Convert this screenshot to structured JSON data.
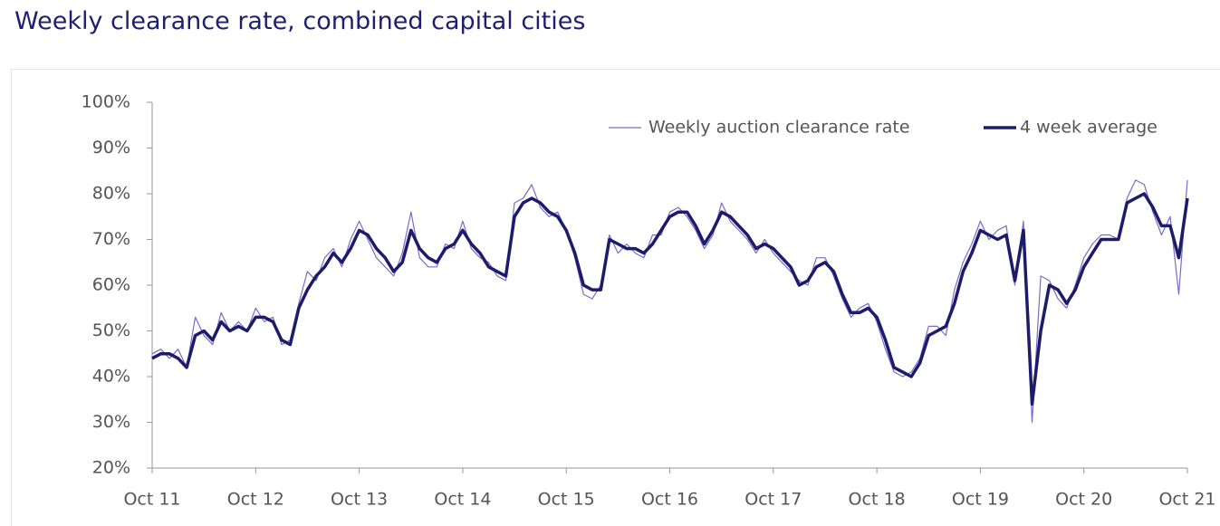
{
  "chart_data": {
    "type": "line",
    "title": "Weekly clearance rate, combined capital cities",
    "x": [
      "2011-10",
      "2011-11",
      "2011-12",
      "2012-01",
      "2012-02",
      "2012-03",
      "2012-04",
      "2012-05",
      "2012-06",
      "2012-07",
      "2012-08",
      "2012-09",
      "2012-10",
      "2012-11",
      "2012-12",
      "2013-01",
      "2013-02",
      "2013-03",
      "2013-04",
      "2013-05",
      "2013-06",
      "2013-07",
      "2013-08",
      "2013-09",
      "2013-10",
      "2013-11",
      "2013-12",
      "2014-01",
      "2014-02",
      "2014-03",
      "2014-04",
      "2014-05",
      "2014-06",
      "2014-07",
      "2014-08",
      "2014-09",
      "2014-10",
      "2014-11",
      "2014-12",
      "2015-01",
      "2015-02",
      "2015-03",
      "2015-04",
      "2015-05",
      "2015-06",
      "2015-07",
      "2015-08",
      "2015-09",
      "2015-10",
      "2015-11",
      "2015-12",
      "2016-01",
      "2016-02",
      "2016-03",
      "2016-04",
      "2016-05",
      "2016-06",
      "2016-07",
      "2016-08",
      "2016-09",
      "2016-10",
      "2016-11",
      "2016-12",
      "2017-01",
      "2017-02",
      "2017-03",
      "2017-04",
      "2017-05",
      "2017-06",
      "2017-07",
      "2017-08",
      "2017-09",
      "2017-10",
      "2017-11",
      "2017-12",
      "2018-01",
      "2018-02",
      "2018-03",
      "2018-04",
      "2018-05",
      "2018-06",
      "2018-07",
      "2018-08",
      "2018-09",
      "2018-10",
      "2018-11",
      "2018-12",
      "2019-01",
      "2019-02",
      "2019-03",
      "2019-04",
      "2019-05",
      "2019-06",
      "2019-07",
      "2019-08",
      "2019-09",
      "2019-10",
      "2019-11",
      "2019-12",
      "2020-01",
      "2020-02",
      "2020-03",
      "2020-04",
      "2020-05",
      "2020-06",
      "2020-07",
      "2020-08",
      "2020-09",
      "2020-10",
      "2020-11",
      "2020-12",
      "2021-01",
      "2021-02",
      "2021-03",
      "2021-04",
      "2021-05",
      "2021-06",
      "2021-07",
      "2021-08",
      "2021-09",
      "2021-10"
    ],
    "series": [
      {
        "name": "Weekly auction clearance rate",
        "color": "#7a6acb",
        "width": 1.2,
        "values": [
          45,
          46,
          44,
          46,
          42,
          53,
          49,
          47,
          54,
          50,
          52,
          50,
          55,
          52,
          53,
          47,
          48,
          56,
          63,
          61,
          66,
          68,
          64,
          70,
          74,
          70,
          66,
          64,
          62,
          67,
          76,
          66,
          64,
          64,
          69,
          68,
          74,
          68,
          66,
          65,
          62,
          61,
          78,
          79,
          82,
          77,
          75,
          76,
          72,
          66,
          58,
          57,
          60,
          71,
          67,
          69,
          67,
          66,
          71,
          71,
          76,
          77,
          75,
          72,
          68,
          71,
          78,
          74,
          72,
          70,
          67,
          70,
          67,
          65,
          63,
          61,
          60,
          66,
          66,
          62,
          57,
          53,
          55,
          56,
          52,
          46,
          41,
          40,
          41,
          44,
          51,
          51,
          49,
          59,
          65,
          69,
          74,
          70,
          72,
          73,
          60,
          74,
          30,
          62,
          61,
          57,
          55,
          60,
          66,
          69,
          71,
          71,
          70,
          79,
          83,
          82,
          76,
          71,
          75,
          58,
          83
        ]
      },
      {
        "name": "4 week average",
        "color": "#1c1c6b",
        "width": 3.5,
        "values": [
          44,
          45,
          45,
          44,
          42,
          49,
          50,
          48,
          52,
          50,
          51,
          50,
          53,
          53,
          52,
          48,
          47,
          55,
          59,
          62,
          64,
          67,
          65,
          68,
          72,
          71,
          68,
          66,
          63,
          65,
          72,
          68,
          66,
          65,
          68,
          69,
          72,
          69,
          67,
          64,
          63,
          62,
          75,
          78,
          79,
          78,
          76,
          75,
          72,
          67,
          60,
          59,
          59,
          70,
          69,
          68,
          68,
          67,
          69,
          72,
          75,
          76,
          76,
          73,
          69,
          72,
          76,
          75,
          73,
          71,
          68,
          69,
          68,
          66,
          64,
          60,
          61,
          64,
          65,
          63,
          58,
          54,
          54,
          55,
          53,
          48,
          42,
          41,
          40,
          43,
          49,
          50,
          51,
          56,
          63,
          67,
          72,
          71,
          70,
          71,
          61,
          72,
          34,
          50,
          60,
          59,
          56,
          59,
          64,
          67,
          70,
          70,
          70,
          78,
          79,
          80,
          77,
          73,
          73,
          66,
          79
        ]
      }
    ],
    "xlim": [
      "2011-10",
      "2021-10"
    ],
    "xticks": [
      {
        "value": "2011-10",
        "label": "Oct 11"
      },
      {
        "value": "2012-10",
        "label": "Oct 12"
      },
      {
        "value": "2013-10",
        "label": "Oct 13"
      },
      {
        "value": "2014-10",
        "label": "Oct 14"
      },
      {
        "value": "2015-10",
        "label": "Oct 15"
      },
      {
        "value": "2016-10",
        "label": "Oct 16"
      },
      {
        "value": "2017-10",
        "label": "Oct 17"
      },
      {
        "value": "2018-10",
        "label": "Oct 18"
      },
      {
        "value": "2019-10",
        "label": "Oct 19"
      },
      {
        "value": "2020-10",
        "label": "Oct 20"
      },
      {
        "value": "2021-10",
        "label": "Oct 21"
      }
    ],
    "ylim": [
      20,
      100
    ],
    "yticks": [
      {
        "value": 20,
        "label": "20%"
      },
      {
        "value": 30,
        "label": "30%"
      },
      {
        "value": 40,
        "label": "40%"
      },
      {
        "value": 50,
        "label": "50%"
      },
      {
        "value": 60,
        "label": "60%"
      },
      {
        "value": 70,
        "label": "70%"
      },
      {
        "value": 80,
        "label": "80%"
      },
      {
        "value": 90,
        "label": "90%"
      },
      {
        "value": 100,
        "label": "100%"
      }
    ],
    "grid": false,
    "legend": "top-right"
  }
}
